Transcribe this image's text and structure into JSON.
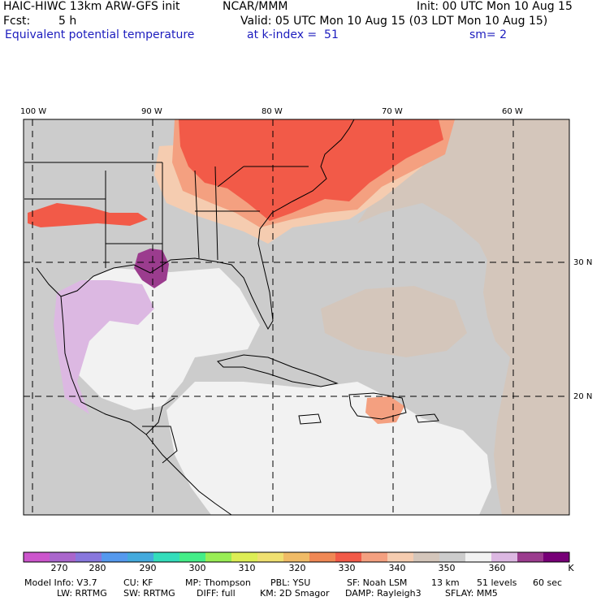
{
  "header": {
    "model_title": "HAIC-HIWC 13km ARW-GFS init",
    "org": "NCAR/MMM",
    "init": "Init: 00 UTC Mon 10 Aug 15",
    "fcst_label": "Fcst:",
    "fcst_value": "5 h",
    "valid": "Valid: 05 UTC Mon 10 Aug 15 (03 LDT Mon 10 Aug 15)",
    "field": "Equivalent potential temperature",
    "level": "at k-index =  51",
    "smoothing": "sm= 2"
  },
  "map": {
    "lon_labels": [
      "100 W",
      "90 W",
      "80 W",
      "70 W",
      "60 W"
    ],
    "lat_labels": [
      "30 N",
      "20 N"
    ],
    "colors": {
      "ocean_light": "#f2f2f2",
      "gray": "#cccccc",
      "tan": "#d4c6bb",
      "peach": "#f5ccb0",
      "salmon": "#f4a080",
      "red": "#f25a48",
      "lavender": "#dcb8e2",
      "purple": "#9b3c8e",
      "coast": "#000000",
      "grid": "#000000"
    }
  },
  "colorbar": {
    "colors": [
      "#cc55cc",
      "#aa66cc",
      "#8877dd",
      "#5599ee",
      "#44aadd",
      "#33ddbb",
      "#44ee88",
      "#99ee55",
      "#ddee55",
      "#f0e070",
      "#f0bb66",
      "#f08855",
      "#f25a48",
      "#f4a080",
      "#f5ccb0",
      "#d4c6bb",
      "#cccccc",
      "#f2f2f2",
      "#dcb8e2",
      "#9b3c8e",
      "#770077"
    ],
    "labels": [
      "270",
      "280",
      "290",
      "300",
      "310",
      "320",
      "330",
      "340",
      "350",
      "360"
    ],
    "unit": "K"
  },
  "footer": {
    "line1": [
      "Model Info: V3.7",
      "CU: KF",
      "MP: Thompson",
      "PBL: YSU",
      "SF: Noah LSM",
      "13 km",
      "51 levels",
      "60 sec"
    ],
    "line2": [
      "LW: RRTMG",
      "SW: RRTMG",
      "DIFF: full",
      "KM: 2D Smagor",
      "DAMP: Rayleigh3",
      "SFLAY: MM5"
    ]
  }
}
